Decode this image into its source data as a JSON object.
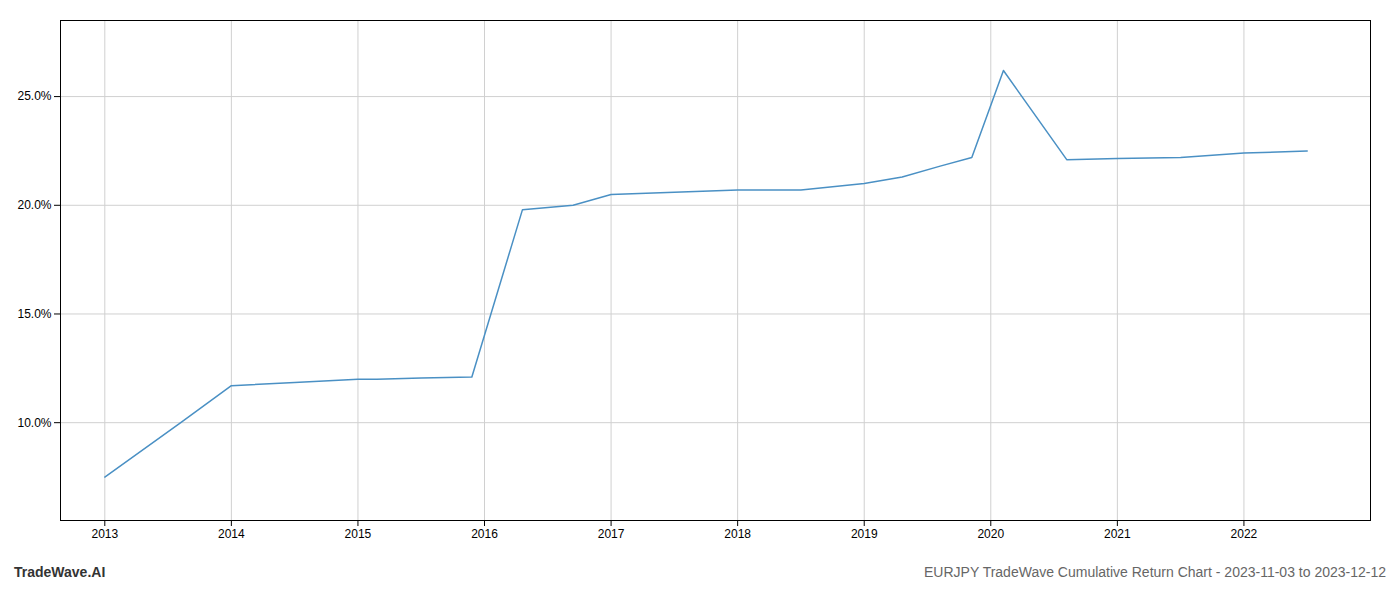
{
  "chart_data": {
    "type": "line",
    "title": "EURJPY TradeWave Cumulative Return Chart - 2023-11-03 to 2023-12-12",
    "annotations": [
      "TradeWave.AI"
    ],
    "x": [
      2013.0,
      2013.6,
      2014.0,
      2014.5,
      2015.0,
      2015.15,
      2015.5,
      2015.9,
      2016.3,
      2016.7,
      2017.0,
      2017.5,
      2018.0,
      2018.5,
      2019.0,
      2019.3,
      2019.6,
      2019.85,
      2020.1,
      2020.6,
      2021.0,
      2021.5,
      2022.0,
      2022.5
    ],
    "values": [
      7.5,
      10.0,
      11.7,
      11.85,
      12.0,
      12.0,
      12.05,
      12.1,
      19.8,
      20.0,
      20.5,
      20.6,
      20.7,
      20.7,
      21.0,
      21.3,
      21.8,
      22.2,
      26.2,
      22.1,
      22.15,
      22.2,
      22.4,
      22.5
    ],
    "color": "#4a90c4",
    "xlim": [
      2012.65,
      2023.0
    ],
    "xticks": [
      2013,
      2014,
      2015,
      2016,
      2017,
      2018,
      2019,
      2020,
      2021,
      2022
    ],
    "ylim": [
      5.5,
      28.5
    ],
    "yticks": [
      {
        "value": 10.0,
        "label": "10.0%"
      },
      {
        "value": 15.0,
        "label": "15.0%"
      },
      {
        "value": 20.0,
        "label": "20.0%"
      },
      {
        "value": 25.0,
        "label": "25.0%"
      }
    ],
    "grid": true
  }
}
